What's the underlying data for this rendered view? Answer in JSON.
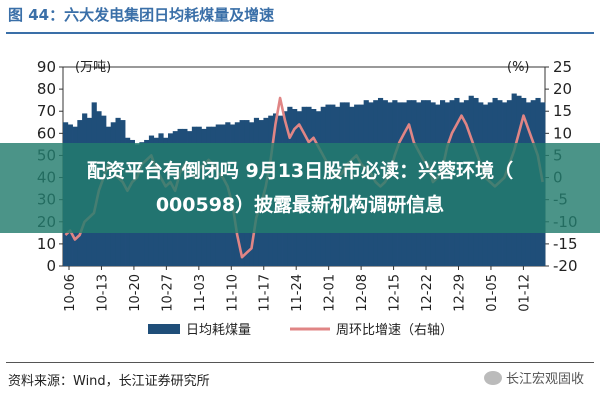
{
  "figure": {
    "title": "图 44：六大发电集团日均耗煤量及增速",
    "source": "资料来源：Wind，长江证券研究所",
    "brand": "长江宏观固收"
  },
  "overlay": {
    "line1": "配资平台有倒闭吗 9月13日股市必读：兴蓉环境（",
    "line2": "000598）披露最新机构调研信息"
  },
  "chart_data": {
    "type": "bar+line",
    "left_unit": "(万吨)",
    "right_unit": "(%)",
    "left_ticks": [
      0,
      10,
      20,
      30,
      40,
      50,
      60,
      70,
      80,
      90
    ],
    "right_ticks": [
      -20,
      -15,
      -10,
      -5,
      0,
      5,
      10,
      15,
      20,
      25
    ],
    "ylim_left": [
      0,
      90
    ],
    "ylim_right": [
      -20,
      25
    ],
    "x_labels": [
      "10-06",
      "10-13",
      "10-20",
      "10-27",
      "11-03",
      "11-10",
      "11-17",
      "11-24",
      "12-01",
      "12-08",
      "12-15",
      "12-22",
      "12-29",
      "01-05",
      "01-12"
    ],
    "x_start": "10-06",
    "x_end": "01-14",
    "series": [
      {
        "name": "日均耗煤量",
        "axis": "left",
        "type": "bar",
        "color": "#1f4e79",
        "values": [
          65,
          64,
          63,
          66,
          69,
          67,
          74,
          70,
          68,
          63,
          65,
          67,
          66,
          58,
          57,
          55,
          56,
          57,
          59,
          58,
          60,
          58,
          60,
          61,
          62,
          62,
          61,
          63,
          63,
          62,
          63,
          63,
          64,
          64,
          65,
          64,
          65,
          66,
          66,
          65,
          67,
          66,
          67,
          68,
          69,
          68,
          70,
          72,
          71,
          70,
          72,
          72,
          71,
          70,
          72,
          73,
          73,
          72,
          74,
          74,
          72,
          73,
          73,
          75,
          74,
          75,
          76,
          75,
          74,
          75,
          74,
          74,
          75,
          75,
          74,
          75,
          75,
          74,
          73,
          75,
          74,
          75,
          76,
          74,
          75,
          77,
          76,
          74,
          73,
          74,
          76,
          75,
          74,
          75,
          78,
          77,
          76,
          74,
          75,
          76,
          74
        ]
      },
      {
        "name": "周环比增速（右轴）",
        "axis": "right",
        "type": "line",
        "color": "#e08585",
        "values": [
          -13,
          -12,
          -14,
          -13,
          -10,
          -9,
          -8,
          -3,
          0,
          3,
          2,
          0,
          -1,
          -3,
          -1,
          0,
          3,
          4,
          5,
          2,
          0,
          -2,
          -1,
          -3,
          1,
          3,
          2,
          0,
          2,
          3,
          4,
          3,
          1,
          0,
          -2,
          -6,
          -13,
          -18,
          -17,
          -16,
          -9,
          -6,
          -2,
          4,
          12,
          18,
          13,
          9,
          11,
          12,
          10,
          8,
          9,
          7,
          5,
          3,
          1,
          0,
          1,
          3,
          4,
          5,
          3,
          2,
          1,
          -1,
          -2,
          -1,
          1,
          5,
          8,
          10,
          12,
          8,
          6,
          4,
          3,
          -1,
          0,
          2,
          7,
          10,
          12,
          14,
          12,
          9,
          6,
          3,
          0,
          -1,
          -2,
          -1,
          0,
          3,
          6,
          10,
          14,
          11,
          8,
          5,
          -1
        ]
      }
    ]
  }
}
